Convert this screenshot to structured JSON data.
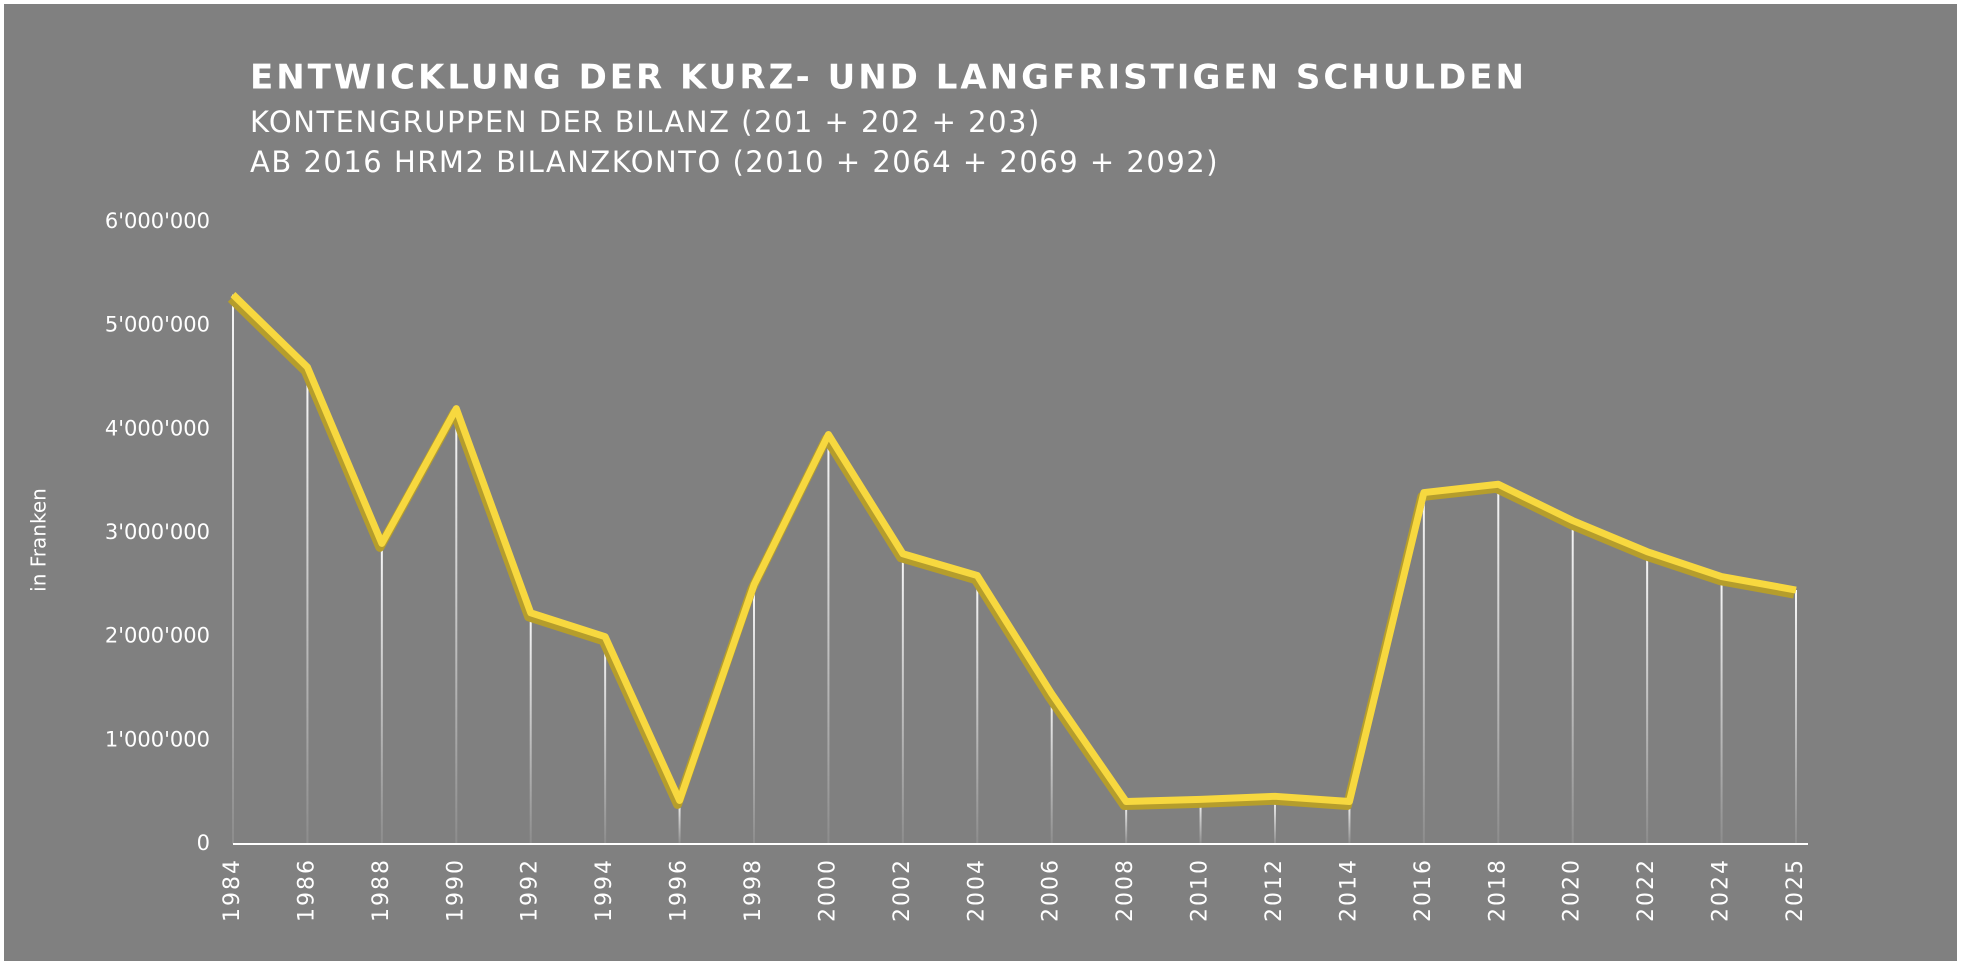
{
  "chart_data": {
    "type": "line",
    "title": "ENTWICKLUNG DER KURZ- UND LANGFRISTIGEN SCHULDEN",
    "subtitle": [
      "KONTENGRUPPEN DER BILANZ (201 + 202 + 203)",
      "AB 2016 HRM2 BILANZKONTO (2010 + 2064 + 2069 + 2092)"
    ],
    "y_label": "in Franken",
    "categories": [
      "1984",
      "1986",
      "1988",
      "1990",
      "1992",
      "1994",
      "1996",
      "1998",
      "2000",
      "2002",
      "2004",
      "2006",
      "2008",
      "2010",
      "2012",
      "2014",
      "2016",
      "2018",
      "2020",
      "2022",
      "2024",
      "2025"
    ],
    "values": [
      5300000,
      4600000,
      2900000,
      4200000,
      2230000,
      2000000,
      420000,
      2500000,
      3950000,
      2800000,
      2590000,
      1450000,
      410000,
      430000,
      460000,
      410000,
      3390000,
      3470000,
      3120000,
      2820000,
      2580000,
      2450000
    ],
    "color": "#f7d83f",
    "ylim": [
      0,
      6000000
    ],
    "yticks": [
      0,
      {
        "value": 1000000,
        "label": "1'000'000"
      },
      {
        "value": 2000000,
        "label": "2'000'000"
      },
      {
        "value": 3000000,
        "label": "3'000'000"
      },
      {
        "value": 4000000,
        "label": "4'000'000"
      },
      {
        "value": 5000000,
        "label": "5'000'000"
      },
      {
        "value": 6000000,
        "label": "6'000'000"
      }
    ],
    "grid": false
  }
}
